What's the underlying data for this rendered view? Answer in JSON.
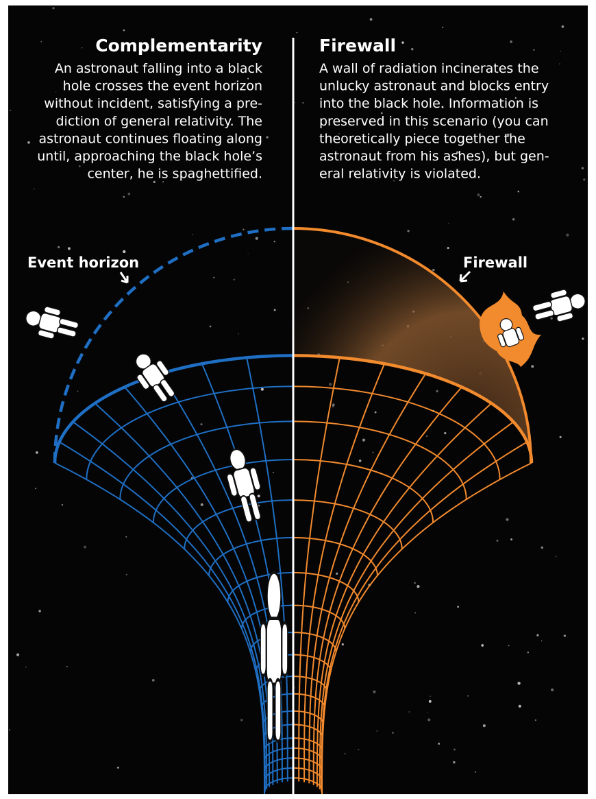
{
  "left": {
    "title": "Complementarity",
    "lines": [
      "An astronaut falling into a black",
      "hole crosses the event horizon",
      "without incident, satisfying a pre-",
      "diction of general relativity.  The",
      "astronaut continues floating along",
      "until, approaching the black hole’s",
      "center, he is spaghettified."
    ],
    "label": "Event horizon"
  },
  "right": {
    "title": "Firewall",
    "lines": [
      "A wall of radiation incinerates the",
      "unlucky astronaut and blocks entry",
      "into the black hole. Information is",
      "preserved in this scenario (you can",
      "theoretically piece together the",
      "astronaut from his ashes), but gen-",
      "eral relativity is violated."
    ],
    "label": "Firewall"
  }
}
